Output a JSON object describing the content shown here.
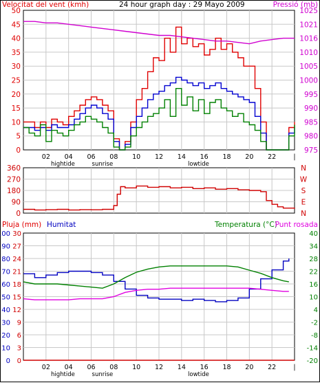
{
  "colors": {
    "frame": "#000000",
    "grid": "#c8c8c8",
    "wind": "#e00000",
    "wind_avg": "#0000d0",
    "wind_min": "#008000",
    "pressure": "#d000d0",
    "direction": "#d00000",
    "humidity": "#0000c0",
    "temperature": "#008000",
    "dewpoint": "#e000e0",
    "rain": "#d00000"
  },
  "header": {
    "wind_label": "Velocitat del vent (kmh)",
    "title": "24 hour graph day : 29 Mayo 2009",
    "pressure_label": "Pressió (mb)"
  },
  "x_axis": {
    "ticks": [
      "02",
      "04",
      "06",
      "08",
      "10",
      "12",
      "14",
      "16",
      "18",
      "20",
      "22",
      "|"
    ],
    "events": [
      "hightide",
      "sunrise",
      "lowtide"
    ]
  },
  "middle_header": {
    "right_labels": [
      "N",
      "W",
      "S",
      "E",
      "N"
    ]
  },
  "bottom_header": {
    "rain_label": "Pluja (mm)",
    "humidity_label": "Humitat",
    "temp_label": "Temperatura (°C)",
    "dew_label": "Punt rosada"
  },
  "chart_data": [
    {
      "type": "line",
      "x_range_hours": [
        0,
        24
      ],
      "ylim_left": [
        0,
        50
      ],
      "ylim_right": [
        975,
        1025
      ],
      "y_ticks_left": [
        "0",
        "5",
        "10",
        "15",
        "20",
        "25",
        "30",
        "35",
        "40",
        "45",
        "50"
      ],
      "y_ticks_right": [
        "975",
        "980",
        "985",
        "990",
        "995",
        "1000",
        "1005",
        "1010",
        "1016",
        "1021",
        "1025"
      ],
      "series": [
        {
          "key": "gust",
          "x": [
            0,
            0.5,
            1,
            1.5,
            2,
            2.5,
            3,
            3.5,
            4,
            4.5,
            5,
            5.5,
            6,
            6.5,
            7,
            7.5,
            8,
            8.5,
            9,
            9.5,
            10,
            10.5,
            11,
            11.5,
            12,
            12.5,
            13,
            13.5,
            14,
            14.5,
            15,
            15.5,
            16,
            16.5,
            17,
            17.5,
            18,
            18.5,
            19,
            19.5,
            20,
            20.5,
            21,
            21.5,
            22,
            22.5,
            23,
            23.5,
            24
          ],
          "values": [
            10,
            10,
            8,
            10,
            8,
            11,
            10,
            9,
            12,
            14,
            16,
            18,
            19,
            18,
            16,
            14,
            4,
            0,
            3,
            10,
            18,
            22,
            28,
            33,
            32,
            40,
            35,
            44,
            38,
            40,
            37,
            38,
            34,
            36,
            40,
            36,
            38,
            35,
            33,
            30,
            30,
            22,
            10,
            0,
            0,
            0,
            0,
            8,
            10
          ]
        },
        {
          "key": "avg",
          "x": [
            0,
            0.5,
            1,
            1.5,
            2,
            2.5,
            3,
            3.5,
            4,
            4.5,
            5,
            5.5,
            6,
            6.5,
            7,
            7.5,
            8,
            8.5,
            9,
            9.5,
            10,
            10.5,
            11,
            11.5,
            12,
            12.5,
            13,
            13.5,
            14,
            14.5,
            15,
            15.5,
            16,
            16.5,
            17,
            17.5,
            18,
            18.5,
            19,
            19.5,
            20,
            20.5,
            21,
            21.5,
            22,
            22.5,
            23,
            23.5,
            24
          ],
          "values": [
            8,
            8,
            7,
            8,
            7,
            9,
            8,
            8,
            9,
            11,
            13,
            15,
            16,
            15,
            13,
            11,
            3,
            0,
            2,
            8,
            12,
            15,
            18,
            20,
            21,
            23,
            24,
            26,
            25,
            24,
            23,
            24,
            22,
            23,
            24,
            22,
            21,
            20,
            19,
            18,
            17,
            12,
            6,
            0,
            0,
            0,
            0,
            6,
            8
          ]
        },
        {
          "key": "min",
          "x": [
            0,
            0.5,
            1,
            1.5,
            2,
            2.5,
            3,
            3.5,
            4,
            4.5,
            5,
            5.5,
            6,
            6.5,
            7,
            7.5,
            8,
            8.5,
            9,
            9.5,
            10,
            10.5,
            11,
            11.5,
            12,
            12.5,
            13,
            13.5,
            14,
            14.5,
            15,
            15.5,
            16,
            16.5,
            17,
            17.5,
            18,
            18.5,
            19,
            19.5,
            20,
            20.5,
            21,
            21.5,
            22,
            22.5,
            23,
            23.5,
            24
          ],
          "values": [
            8,
            6,
            5,
            9,
            3,
            7,
            6,
            5,
            7,
            9,
            10,
            12,
            11,
            10,
            8,
            6,
            1,
            0,
            1,
            5,
            8,
            10,
            12,
            13,
            15,
            18,
            12,
            22,
            16,
            19,
            14,
            18,
            13,
            17,
            18,
            15,
            14,
            12,
            13,
            10,
            9,
            7,
            3,
            0,
            0,
            0,
            0,
            5,
            9
          ]
        },
        {
          "key": "pressure",
          "x": [
            0,
            1,
            2,
            3,
            4,
            5,
            6,
            7,
            8,
            9,
            10,
            11,
            12,
            13,
            14,
            15,
            16,
            17,
            18,
            19,
            20,
            21,
            22,
            23,
            24
          ],
          "values": [
            1021,
            1021,
            1020.5,
            1020.5,
            1020,
            1019.5,
            1019,
            1018.5,
            1018,
            1017.5,
            1017,
            1016.5,
            1016,
            1016,
            1015.5,
            1015,
            1014.5,
            1014,
            1014,
            1013.5,
            1013,
            1014,
            1014.5,
            1015,
            1015
          ]
        }
      ]
    },
    {
      "type": "line",
      "x_range_hours": [
        0,
        24
      ],
      "ylim": [
        0,
        360
      ],
      "y_ticks": [
        "0",
        "90",
        "180",
        "270",
        "360"
      ],
      "series": [
        {
          "key": "direction",
          "x": [
            0,
            1,
            2,
            3,
            4,
            5,
            6,
            7,
            7.5,
            8,
            8.3,
            8.6,
            9,
            10,
            11,
            12,
            13,
            14,
            15,
            16,
            17,
            18,
            19,
            20,
            21,
            21.5,
            22,
            22.5,
            23,
            24
          ],
          "values": [
            30,
            25,
            28,
            30,
            25,
            28,
            27,
            30,
            30,
            60,
            150,
            210,
            200,
            215,
            205,
            210,
            200,
            205,
            195,
            200,
            190,
            195,
            185,
            180,
            170,
            100,
            70,
            50,
            40,
            35
          ]
        }
      ]
    },
    {
      "type": "line",
      "x_range_hours": [
        0,
        24
      ],
      "ylim_rain": [
        0,
        30
      ],
      "ylim_humidity": [
        0,
        100
      ],
      "ylim_temp": [
        -20,
        40
      ],
      "y_ticks_rain": [
        "0",
        "3",
        "6",
        "9",
        "12",
        "15",
        "18",
        "21",
        "24",
        "27",
        "30"
      ],
      "y_ticks_humidity": [
        "0",
        "10",
        "20",
        "30",
        "40",
        "50",
        "60",
        "70",
        "80",
        "90",
        "100"
      ],
      "y_ticks_temp": [
        "-20",
        "-14",
        "-8",
        "-2",
        "4",
        "10",
        "16",
        "22",
        "28",
        "34",
        "40"
      ],
      "series": [
        {
          "key": "humidity",
          "x": [
            0,
            1,
            2,
            3,
            4,
            5,
            6,
            7,
            8,
            9,
            10,
            11,
            12,
            13,
            14,
            15,
            16,
            17,
            18,
            19,
            20,
            21,
            22,
            23,
            23.5
          ],
          "values": [
            68,
            65,
            67,
            69,
            70,
            70,
            69,
            67,
            62,
            56,
            51,
            49,
            48,
            48,
            47,
            48,
            47,
            46,
            47,
            49,
            56,
            64,
            71,
            78,
            80
          ]
        },
        {
          "key": "temperature",
          "x": [
            0,
            1,
            2,
            3,
            4,
            5,
            6,
            7,
            8,
            9,
            10,
            11,
            12,
            13,
            14,
            15,
            16,
            17,
            18,
            19,
            20,
            21,
            22,
            23,
            23.5
          ],
          "values": [
            17,
            16,
            16,
            16,
            15.5,
            15,
            14.5,
            14,
            16,
            19,
            21.5,
            23,
            24,
            24.5,
            24.5,
            24.5,
            24.5,
            24.5,
            24.5,
            24,
            22.5,
            21,
            19,
            17.5,
            17
          ]
        },
        {
          "key": "dewpoint",
          "x": [
            0,
            1,
            2,
            3,
            4,
            5,
            6,
            7,
            8,
            9,
            10,
            11,
            12,
            13,
            14,
            15,
            16,
            17,
            18,
            19,
            20,
            21,
            22,
            23,
            23.5
          ],
          "values": [
            9,
            8.5,
            8.5,
            8.5,
            8.5,
            9,
            9,
            9,
            10,
            12,
            13,
            13.5,
            13.5,
            14,
            14,
            14,
            14,
            14,
            14,
            14,
            14,
            13.5,
            13,
            12.5,
            12.5
          ]
        },
        {
          "key": "rain",
          "x": [
            0,
            24
          ],
          "values": [
            0,
            0
          ]
        }
      ]
    }
  ]
}
